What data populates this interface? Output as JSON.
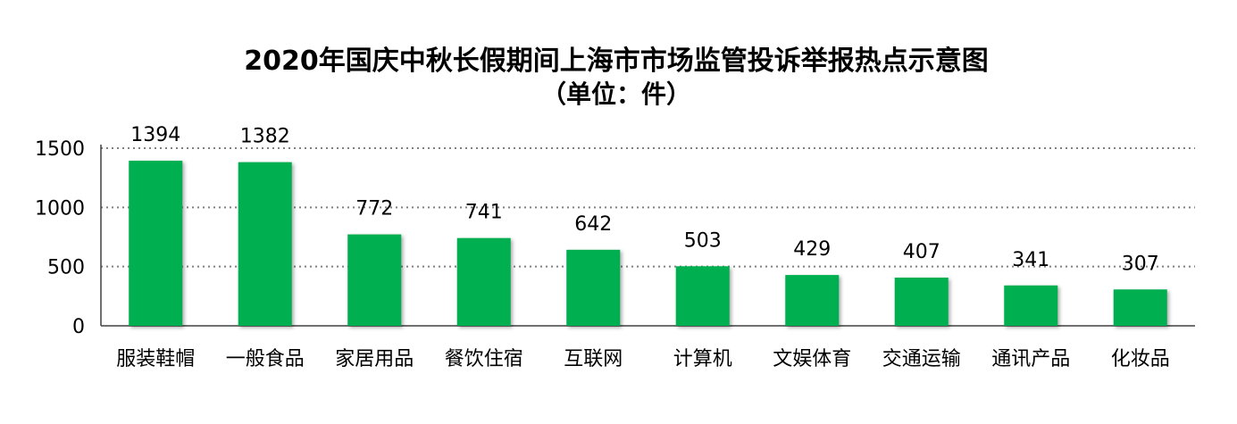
{
  "chart_data": {
    "type": "bar",
    "title": "2020年国庆中秋长假期间上海市市场监管投诉举报热点示意图",
    "subtitle": "（单位：件）",
    "categories": [
      "服装鞋帽",
      "一般食品",
      "家居用品",
      "餐饮住宿",
      "互联网",
      "计算机",
      "文娱体育",
      "交通运输",
      "通讯产品",
      "化妆品"
    ],
    "values": [
      1394,
      1382,
      772,
      741,
      642,
      503,
      429,
      407,
      341,
      307
    ],
    "ylim": [
      0,
      1500
    ],
    "yticks": [
      "0",
      "500",
      "1000",
      "1500"
    ],
    "grid": "dotted-horizontal",
    "legend": "none",
    "bar_color": "#00b050",
    "xlabel": "",
    "ylabel": ""
  }
}
